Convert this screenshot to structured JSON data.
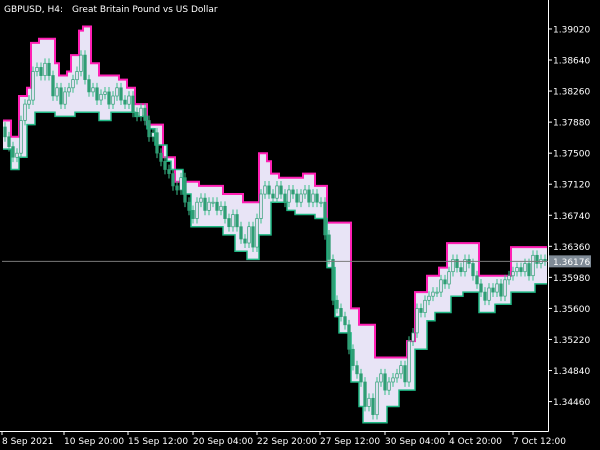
{
  "chart_title": {
    "symbol": "GBPUSD, H4:",
    "description": "Great Britain Pound vs US Dollar"
  },
  "chart_data": {
    "type": "candlestick",
    "title": "GBPUSD, H4:  Great Britain Pound vs US Dollar",
    "symbol": "GBPUSD",
    "timeframe": "H4",
    "ylim": [
      1.341,
      1.3935
    ],
    "y_ticks": [
      "1.39020",
      "1.38640",
      "1.38260",
      "1.37880",
      "1.37500",
      "1.37120",
      "1.36740",
      "1.36360",
      "1.35980",
      "1.35600",
      "1.35220",
      "1.34840",
      "1.34460"
    ],
    "x_ticks": [
      "8 Sep 2021",
      "10 Sep 20:00",
      "15 Sep 12:00",
      "20 Sep 04:00",
      "22 Sep 20:00",
      "27 Sep 12:00",
      "30 Sep 04:00",
      "4 Oct 20:00",
      "7 Oct 12:00"
    ],
    "current_price": "1.36176",
    "grid": false,
    "upper_band": [
      1.379,
      1.379,
      1.377,
      1.377,
      1.382,
      1.382,
      1.383,
      1.3885,
      1.3885,
      1.389,
      1.389,
      1.389,
      1.389,
      1.386,
      1.3845,
      1.3845,
      1.385,
      1.387,
      1.387,
      1.39,
      1.3905,
      1.3905,
      1.386,
      1.386,
      1.3845,
      1.3845,
      1.3845,
      1.3845,
      1.3845,
      1.384,
      1.384,
      1.383,
      1.383,
      1.381,
      1.381,
      1.381,
      1.3785,
      1.3785,
      1.3785,
      1.3785,
      1.3745,
      1.3745,
      1.3745,
      1.3715,
      1.3715,
      1.3715,
      1.3715,
      1.3715,
      1.3715,
      1.371,
      1.371,
      1.371,
      1.371,
      1.371,
      1.371,
      1.37,
      1.37,
      1.37,
      1.37,
      1.37,
      1.369,
      1.369,
      1.369,
      1.369,
      1.375,
      1.375,
      1.374,
      1.3725,
      1.3725,
      1.372,
      1.372,
      1.372,
      1.372,
      1.372,
      1.372,
      1.3725,
      1.3725,
      1.3725,
      1.371,
      1.371,
      1.371,
      1.3665,
      1.3665,
      1.3665,
      1.3665,
      1.3665,
      1.3665,
      1.356,
      1.356,
      1.354,
      1.354,
      1.354,
      1.354,
      1.35,
      1.35,
      1.35,
      1.35,
      1.35,
      1.35,
      1.35,
      1.35,
      1.352,
      1.352,
      1.358,
      1.358,
      1.358,
      1.36,
      1.36,
      1.36,
      1.361,
      1.361,
      1.364,
      1.364,
      1.364,
      1.364,
      1.364,
      1.364,
      1.364,
      1.364,
      1.36,
      1.36,
      1.36,
      1.36,
      1.36,
      1.36,
      1.36,
      1.36,
      1.3635,
      1.3635,
      1.3635,
      1.3635,
      1.3635,
      1.3635,
      1.3635,
      1.3635,
      1.3635
    ],
    "lower_band": [
      1.3755,
      1.3755,
      1.373,
      1.373,
      1.3745,
      1.3745,
      1.3785,
      1.3785,
      1.38,
      1.38,
      1.38,
      1.38,
      1.38,
      1.3795,
      1.3795,
      1.3795,
      1.3795,
      1.3795,
      1.38,
      1.38,
      1.38,
      1.38,
      1.38,
      1.38,
      1.379,
      1.379,
      1.379,
      1.38,
      1.38,
      1.38,
      1.38,
      1.38,
      1.38,
      1.3795,
      1.3795,
      1.3795,
      1.378,
      1.378,
      1.376,
      1.376,
      1.376,
      1.374,
      1.373,
      1.373,
      1.373,
      1.37,
      1.37,
      1.366,
      1.366,
      1.366,
      1.366,
      1.366,
      1.366,
      1.366,
      1.366,
      1.365,
      1.365,
      1.365,
      1.363,
      1.363,
      1.363,
      1.362,
      1.362,
      1.362,
      1.365,
      1.365,
      1.365,
      1.369,
      1.369,
      1.369,
      1.369,
      1.368,
      1.368,
      1.3675,
      1.3675,
      1.3675,
      1.3675,
      1.3675,
      1.367,
      1.367,
      1.367,
      1.361,
      1.361,
      1.355,
      1.353,
      1.353,
      1.353,
      1.347,
      1.347,
      1.344,
      1.342,
      1.342,
      1.342,
      1.342,
      1.342,
      1.342,
      1.344,
      1.344,
      1.344,
      1.346,
      1.346,
      1.346,
      1.346,
      1.351,
      1.351,
      1.351,
      1.3545,
      1.3545,
      1.3555,
      1.3555,
      1.3555,
      1.3555,
      1.3575,
      1.3575,
      1.3575,
      1.358,
      1.358,
      1.358,
      1.358,
      1.3555,
      1.3555,
      1.3555,
      1.3555,
      1.3565,
      1.3565,
      1.3565,
      1.3565,
      1.358,
      1.358,
      1.358,
      1.358,
      1.358,
      1.358,
      1.359,
      1.359,
      1.359
    ],
    "series": [
      {
        "open": [
          1.3782,
          1.377,
          1.3758,
          1.3745,
          1.375,
          1.379,
          1.381,
          1.3815,
          1.385,
          1.3855,
          1.3845,
          1.386,
          1.3845,
          1.382,
          1.383,
          1.381,
          1.3825,
          1.383,
          1.384,
          1.385,
          1.387,
          1.384,
          1.3825,
          1.383,
          1.3815,
          1.3822,
          1.3825,
          1.381,
          1.382,
          1.383,
          1.3815,
          1.381,
          1.382,
          1.38,
          1.3795,
          1.3805,
          1.379,
          1.377,
          1.3775,
          1.375,
          1.374,
          1.373,
          1.3725,
          1.371,
          1.3705,
          1.372,
          1.369,
          1.368,
          1.367,
          1.369,
          1.3695,
          1.368,
          1.369,
          1.369,
          1.368,
          1.3685,
          1.367,
          1.366,
          1.3675,
          1.366,
          1.3645,
          1.364,
          1.366,
          1.3635,
          1.367,
          1.37,
          1.371,
          1.37,
          1.3695,
          1.371,
          1.37,
          1.369,
          1.3705,
          1.37,
          1.369,
          1.37,
          1.3705,
          1.369,
          1.37,
          1.369,
          1.369,
          1.365,
          1.362,
          1.357,
          1.356,
          1.355,
          1.354,
          1.351,
          1.349,
          1.348,
          1.347,
          1.344,
          1.345,
          1.343,
          1.347,
          1.348,
          1.346,
          1.347,
          1.3475,
          1.348,
          1.349,
          1.347,
          1.352,
          1.353,
          1.356,
          1.3555,
          1.357,
          1.3575,
          1.358,
          1.358,
          1.3595,
          1.359,
          1.3605,
          1.362,
          1.361,
          1.3605,
          1.362,
          1.3615,
          1.36,
          1.359,
          1.358,
          1.357,
          1.3585,
          1.358,
          1.359,
          1.3575,
          1.3595,
          1.36,
          1.3605,
          1.361,
          1.3605,
          1.3615,
          1.36,
          1.3625,
          1.3615,
          1.362
        ],
        "close": [
          1.377,
          1.3758,
          1.3745,
          1.375,
          1.379,
          1.381,
          1.3815,
          1.385,
          1.3855,
          1.3845,
          1.386,
          1.3845,
          1.382,
          1.383,
          1.381,
          1.3825,
          1.383,
          1.384,
          1.385,
          1.387,
          1.384,
          1.3825,
          1.383,
          1.3815,
          1.3822,
          1.3825,
          1.381,
          1.382,
          1.383,
          1.3815,
          1.381,
          1.382,
          1.38,
          1.3795,
          1.3805,
          1.379,
          1.377,
          1.3775,
          1.375,
          1.374,
          1.373,
          1.3725,
          1.371,
          1.3705,
          1.372,
          1.369,
          1.368,
          1.367,
          1.369,
          1.3695,
          1.368,
          1.369,
          1.369,
          1.368,
          1.3685,
          1.367,
          1.366,
          1.3675,
          1.366,
          1.3645,
          1.364,
          1.366,
          1.3635,
          1.367,
          1.37,
          1.371,
          1.37,
          1.3695,
          1.371,
          1.37,
          1.369,
          1.3705,
          1.37,
          1.369,
          1.37,
          1.3705,
          1.369,
          1.37,
          1.369,
          1.369,
          1.365,
          1.362,
          1.357,
          1.356,
          1.355,
          1.354,
          1.351,
          1.349,
          1.348,
          1.347,
          1.344,
          1.345,
          1.343,
          1.347,
          1.348,
          1.346,
          1.347,
          1.3475,
          1.348,
          1.349,
          1.347,
          1.352,
          1.353,
          1.356,
          1.3555,
          1.357,
          1.3575,
          1.358,
          1.358,
          1.3595,
          1.359,
          1.3605,
          1.362,
          1.361,
          1.3605,
          1.362,
          1.3615,
          1.36,
          1.359,
          1.358,
          1.357,
          1.3585,
          1.358,
          1.359,
          1.3575,
          1.3595,
          1.36,
          1.3605,
          1.361,
          1.3605,
          1.3615,
          1.36,
          1.3625,
          1.3615,
          1.362,
          1.3618
        ]
      }
    ]
  },
  "colors": {
    "background": "#000000",
    "axis": "#ffffff",
    "band_fill": "#e8e4f6",
    "upper_band": "#ff1fb4",
    "lower_band": "#1fb884",
    "candle_body": "#2e9e74",
    "candle_wick": "#3cc08c",
    "price_line": "#7a7a7a",
    "price_label_bg": "#7f8a96",
    "text": "#ffffff"
  }
}
